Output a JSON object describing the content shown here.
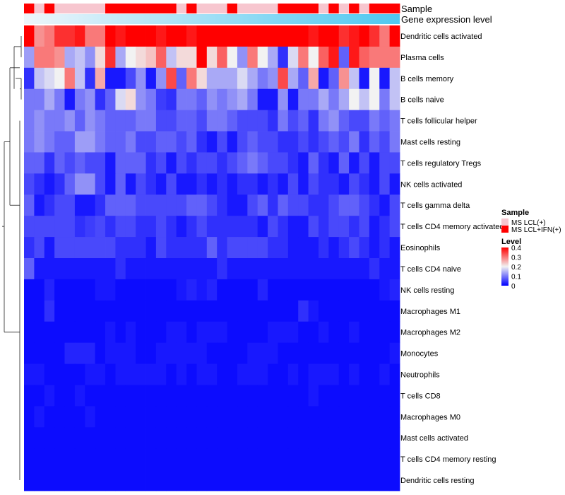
{
  "chart_data": {
    "type": "heatmap",
    "annotation_titles": [
      "Sample",
      "Gene expression level"
    ],
    "sample_groups": [
      "MS LCL(+)",
      "MS LCL+IFN(+)"
    ],
    "sample_annotation": [
      1,
      0,
      1,
      0,
      0,
      0,
      0,
      0,
      1,
      1,
      1,
      1,
      1,
      1,
      1,
      0,
      1,
      0,
      0,
      0,
      1,
      0,
      0,
      0,
      0,
      1,
      1,
      1,
      1,
      0,
      1,
      0,
      1,
      0,
      1,
      1,
      1
    ],
    "rows": [
      "Dendritic cells activated",
      "Plasma cells",
      "B cells memory",
      "B cells naive",
      "T cells follicular helper",
      "Mast cells resting",
      "T cells regulatory  Tregs",
      "NK cells activated",
      "T cells gamma delta",
      "T cells CD4 memory activated",
      "Eosinophils",
      "T cells CD4 naive",
      "NK cells resting",
      "Macrophages M1",
      "Macrophages M2",
      "Monocytes",
      "Neutrophils",
      "T cells CD8",
      "Macrophages M0",
      "Mast cells activated",
      "T cells CD4 memory resting",
      "Dendritic cells resting"
    ],
    "values": [
      [
        0.4,
        0.28,
        0.3,
        0.36,
        0.36,
        0.38,
        0.3,
        0.3,
        0.4,
        0.38,
        0.4,
        0.4,
        0.4,
        0.38,
        0.4,
        0.4,
        0.38,
        0.4,
        0.4,
        0.4,
        0.4,
        0.4,
        0.4,
        0.4,
        0.4,
        0.4,
        0.4,
        0.4,
        0.38,
        0.4,
        0.4,
        0.36,
        0.38,
        0.4,
        0.36,
        0.3,
        0.4
      ],
      [
        0.13,
        0.3,
        0.3,
        0.28,
        0.14,
        0.16,
        0.12,
        0.22,
        0.36,
        0.14,
        0.2,
        0.22,
        0.24,
        0.32,
        0.16,
        0.22,
        0.22,
        0.4,
        0.22,
        0.32,
        0.2,
        0.12,
        0.3,
        0.2,
        0.14,
        0.04,
        0.18,
        0.3,
        0.2,
        0.32,
        0.38,
        0.08,
        0.38,
        0.32,
        0.3,
        0.3,
        0.3
      ],
      [
        0.04,
        0.16,
        0.18,
        0.2,
        0.3,
        0.16,
        0.04,
        0.26,
        0.02,
        0.02,
        0.06,
        0.12,
        0.02,
        0.12,
        0.34,
        0.08,
        0.3,
        0.22,
        0.14,
        0.14,
        0.14,
        0.18,
        0.14,
        0.1,
        0.12,
        0.34,
        0.14,
        0.08,
        0.26,
        0.02,
        0.08,
        0.28,
        0.16,
        0.02,
        0.2,
        0.02,
        0.16
      ],
      [
        0.1,
        0.1,
        0.14,
        0.1,
        0.02,
        0.1,
        0.12,
        0.04,
        0.08,
        0.18,
        0.22,
        0.12,
        0.1,
        0.05,
        0.04,
        0.1,
        0.1,
        0.08,
        0.12,
        0.1,
        0.12,
        0.14,
        0.1,
        0.02,
        0.02,
        0.12,
        0.02,
        0.1,
        0.1,
        0.14,
        0.1,
        0.14,
        0.2,
        0.16,
        0.2,
        0.1,
        0.16
      ],
      [
        0.1,
        0.12,
        0.1,
        0.1,
        0.12,
        0.08,
        0.12,
        0.1,
        0.08,
        0.08,
        0.08,
        0.1,
        0.1,
        0.06,
        0.06,
        0.08,
        0.08,
        0.06,
        0.1,
        0.1,
        0.08,
        0.06,
        0.06,
        0.06,
        0.04,
        0.1,
        0.06,
        0.08,
        0.04,
        0.1,
        0.12,
        0.08,
        0.06,
        0.06,
        0.1,
        0.08,
        0.1
      ],
      [
        0.1,
        0.12,
        0.1,
        0.08,
        0.08,
        0.13,
        0.13,
        0.1,
        0.08,
        0.08,
        0.1,
        0.06,
        0.06,
        0.08,
        0.08,
        0.06,
        0.08,
        0.04,
        0.02,
        0.06,
        0.02,
        0.06,
        0.08,
        0.06,
        0.06,
        0.04,
        0.04,
        0.06,
        0.04,
        0.06,
        0.08,
        0.06,
        0.1,
        0.04,
        0.08,
        0.06,
        0.1
      ],
      [
        0.08,
        0.08,
        0.04,
        0.08,
        0.06,
        0.08,
        0.06,
        0.06,
        0.02,
        0.08,
        0.08,
        0.08,
        0.04,
        0.06,
        0.02,
        0.06,
        0.04,
        0.06,
        0.06,
        0.04,
        0.06,
        0.08,
        0.1,
        0.08,
        0.06,
        0.06,
        0.04,
        0.02,
        0.08,
        0.04,
        0.02,
        0.08,
        0.02,
        0.06,
        0.02,
        0.06,
        0.06
      ],
      [
        0.06,
        0.04,
        0.02,
        0.04,
        0.08,
        0.12,
        0.12,
        0.06,
        0.02,
        0.08,
        0.02,
        0.06,
        0.04,
        0.02,
        0.06,
        0.02,
        0.02,
        0.04,
        0.02,
        0.04,
        0.02,
        0.04,
        0.04,
        0.02,
        0.04,
        0.02,
        0.06,
        0.02,
        0.06,
        0.04,
        0.04,
        0.02,
        0.06,
        0.04,
        0.02,
        0.06,
        0.02
      ],
      [
        0.08,
        0.02,
        0.04,
        0.06,
        0.06,
        0.02,
        0.02,
        0.04,
        0.08,
        0.08,
        0.08,
        0.06,
        0.06,
        0.06,
        0.06,
        0.06,
        0.08,
        0.08,
        0.06,
        0.04,
        0.02,
        0.02,
        0.06,
        0.08,
        0.04,
        0.08,
        0.06,
        0.06,
        0.04,
        0.04,
        0.06,
        0.08,
        0.08,
        0.06,
        0.04,
        0.02,
        0.06
      ],
      [
        0.06,
        0.06,
        0.06,
        0.06,
        0.06,
        0.04,
        0.05,
        0.06,
        0.04,
        0.06,
        0.06,
        0.04,
        0.04,
        0.06,
        0.04,
        0.02,
        0.04,
        0.06,
        0.04,
        0.04,
        0.04,
        0.04,
        0.04,
        0.02,
        0.06,
        0.04,
        0.02,
        0.02,
        0.06,
        0.04,
        0.06,
        0.06,
        0.04,
        0.06,
        0.02,
        0.04,
        0.06
      ],
      [
        0.04,
        0.06,
        0.02,
        0.06,
        0.06,
        0.06,
        0.06,
        0.06,
        0.06,
        0.04,
        0.04,
        0.04,
        0.02,
        0.06,
        0.04,
        0.04,
        0.04,
        0.04,
        0.08,
        0.04,
        0.06,
        0.06,
        0.06,
        0.06,
        0.04,
        0.04,
        0.02,
        0.02,
        0.02,
        0.04,
        0.02,
        0.04,
        0.06,
        0.04,
        0.02,
        0.04,
        0.02
      ],
      [
        0.08,
        0.02,
        0.02,
        0.02,
        0.02,
        0.02,
        0.02,
        0.02,
        0.02,
        0.04,
        0.02,
        0.02,
        0.02,
        0.02,
        0.02,
        0.02,
        0.02,
        0.02,
        0.02,
        0.04,
        0.02,
        0.02,
        0.02,
        0.02,
        0.02,
        0.02,
        0.02,
        0.02,
        0.02,
        0.02,
        0.02,
        0.02,
        0.02,
        0.02,
        0.04,
        0.02,
        0.02
      ],
      [
        0.01,
        0.01,
        0.03,
        0.01,
        0.01,
        0.01,
        0.01,
        0.02,
        0.02,
        0.01,
        0.01,
        0.01,
        0.01,
        0.01,
        0.01,
        0.02,
        0.03,
        0.02,
        0.03,
        0.01,
        0.01,
        0.01,
        0.01,
        0.03,
        0.01,
        0.01,
        0.01,
        0.01,
        0.01,
        0.01,
        0.01,
        0.01,
        0.01,
        0.01,
        0.01,
        0.02,
        0.03
      ],
      [
        0.01,
        0.01,
        0.04,
        0.01,
        0.01,
        0.01,
        0.01,
        0.01,
        0.01,
        0.01,
        0.01,
        0.01,
        0.01,
        0.01,
        0.01,
        0.01,
        0.01,
        0.01,
        0.01,
        0.01,
        0.01,
        0.01,
        0.01,
        0.01,
        0.01,
        0.01,
        0.01,
        0.04,
        0.02,
        0.01,
        0.01,
        0.01,
        0.01,
        0.01,
        0.01,
        0.01,
        0.01
      ],
      [
        0.01,
        0.01,
        0.01,
        0.01,
        0.01,
        0.01,
        0.01,
        0.01,
        0.02,
        0.01,
        0.02,
        0.01,
        0.01,
        0.01,
        0.02,
        0.02,
        0.01,
        0.02,
        0.02,
        0.02,
        0.01,
        0.01,
        0.01,
        0.01,
        0.02,
        0.02,
        0.02,
        0.01,
        0.01,
        0.02,
        0.01,
        0.01,
        0.02,
        0.01,
        0.01,
        0.01,
        0.01
      ],
      [
        0.01,
        0.01,
        0.01,
        0.01,
        0.03,
        0.03,
        0.03,
        0.01,
        0.02,
        0.02,
        0.02,
        0.01,
        0.01,
        0.02,
        0.02,
        0.02,
        0.02,
        0.02,
        0.01,
        0.01,
        0.01,
        0.01,
        0.02,
        0.02,
        0.02,
        0.01,
        0.01,
        0.01,
        0.01,
        0.01,
        0.01,
        0.01,
        0.01,
        0.01,
        0.01,
        0.01,
        0.02
      ],
      [
        0.02,
        0.02,
        0.01,
        0.01,
        0.01,
        0.01,
        0.02,
        0.02,
        0.01,
        0.02,
        0.02,
        0.02,
        0.02,
        0.02,
        0.01,
        0.02,
        0.01,
        0.02,
        0.02,
        0.01,
        0.01,
        0.02,
        0.02,
        0.02,
        0.01,
        0.01,
        0.02,
        0.01,
        0.02,
        0.02,
        0.02,
        0.01,
        0.02,
        0.01,
        0.01,
        0.02,
        0.01
      ],
      [
        0.01,
        0.01,
        0.02,
        0.01,
        0.01,
        0.02,
        0.01,
        0.01,
        0.01,
        0.01,
        0.01,
        0.01,
        0.01,
        0.01,
        0.01,
        0.01,
        0.01,
        0.01,
        0.01,
        0.01,
        0.01,
        0.01,
        0.01,
        0.01,
        0.01,
        0.01,
        0.01,
        0.01,
        0.02,
        0.01,
        0.01,
        0.01,
        0.01,
        0.01,
        0.01,
        0.01,
        0.01
      ],
      [
        0.01,
        0.02,
        0.01,
        0.01,
        0.01,
        0.01,
        0.02,
        0.01,
        0.01,
        0.01,
        0.01,
        0.01,
        0.01,
        0.01,
        0.01,
        0.01,
        0.01,
        0.01,
        0.01,
        0.01,
        0.01,
        0.01,
        0.01,
        0.01,
        0.01,
        0.01,
        0.01,
        0.01,
        0.01,
        0.01,
        0.01,
        0.01,
        0.01,
        0.01,
        0.01,
        0.01,
        0.01
      ],
      [
        0.01,
        0.01,
        0.01,
        0.01,
        0.01,
        0.01,
        0.01,
        0.01,
        0.01,
        0.01,
        0.01,
        0.01,
        0.01,
        0.01,
        0.01,
        0.01,
        0.01,
        0.01,
        0.01,
        0.01,
        0.01,
        0.01,
        0.01,
        0.01,
        0.01,
        0.01,
        0.01,
        0.01,
        0.01,
        0.01,
        0.01,
        0.01,
        0.01,
        0.01,
        0.01,
        0.01,
        0.01
      ],
      [
        0.01,
        0.01,
        0.01,
        0.01,
        0.01,
        0.01,
        0.01,
        0.01,
        0.01,
        0.01,
        0.01,
        0.01,
        0.01,
        0.01,
        0.01,
        0.01,
        0.01,
        0.01,
        0.01,
        0.01,
        0.01,
        0.01,
        0.01,
        0.01,
        0.01,
        0.01,
        0.01,
        0.01,
        0.01,
        0.01,
        0.01,
        0.01,
        0.01,
        0.01,
        0.01,
        0.01,
        0.01
      ],
      [
        0.01,
        0.01,
        0.01,
        0.01,
        0.01,
        0.01,
        0.01,
        0.01,
        0.01,
        0.01,
        0.01,
        0.01,
        0.01,
        0.01,
        0.01,
        0.01,
        0.01,
        0.01,
        0.01,
        0.01,
        0.01,
        0.01,
        0.01,
        0.01,
        0.01,
        0.01,
        0.01,
        0.01,
        0.01,
        0.01,
        0.01,
        0.01,
        0.01,
        0.01,
        0.01,
        0.01,
        0.01
      ]
    ],
    "color_scale": {
      "low": "#0000ff",
      "mid": "#f2f2f2",
      "high": "#ff0000",
      "domain": [
        0,
        0.4
      ]
    },
    "sample_colors": [
      "#f7c6cf",
      "#ff0000"
    ],
    "gene_expression_colors": [
      "#eef6fb",
      "#4fc8f0"
    ],
    "legend": {
      "sample_title": "Sample",
      "level_title": "Level",
      "level_ticks": [
        "0.4",
        "0.3",
        "0.2",
        "0.1",
        "0"
      ],
      "level_tick_values": [
        0.4,
        0.3,
        0.2,
        0.1,
        0
      ]
    }
  }
}
